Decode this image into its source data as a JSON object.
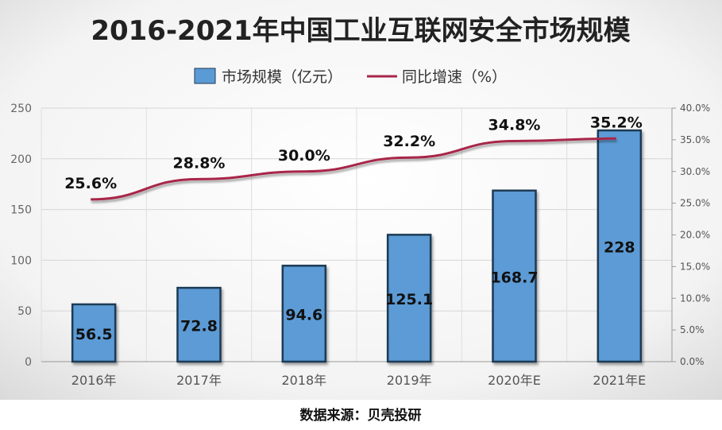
{
  "chart_data": {
    "type": "bar",
    "title": "2016-2021年中国工业互联网安全市场规模",
    "categories": [
      "2016年",
      "2017年",
      "2018年",
      "2019年",
      "2020年E",
      "2021年E"
    ],
    "series": [
      {
        "name": "市场规模（亿元）",
        "type": "bar",
        "axis": "left",
        "values": [
          56.5,
          72.8,
          94.6,
          125.1,
          168.7,
          228
        ],
        "labels": [
          "56.5",
          "72.8",
          "94.6",
          "125.1",
          "168.7",
          "228"
        ]
      },
      {
        "name": "同比增速（%）",
        "type": "line",
        "axis": "right",
        "values": [
          25.6,
          28.8,
          30.0,
          32.2,
          34.8,
          35.2
        ],
        "labels": [
          "25.6%",
          "28.8%",
          "30.0%",
          "32.2%",
          "34.8%",
          "35.2%"
        ]
      }
    ],
    "y_left": {
      "min": 0,
      "max": 250,
      "ticks": [
        "0",
        "50",
        "100",
        "150",
        "200",
        "250"
      ]
    },
    "y_right": {
      "min": 0,
      "max": 40,
      "ticks": [
        "0.0%",
        "5.0%",
        "10.0%",
        "15.0%",
        "20.0%",
        "25.0%",
        "30.0%",
        "35.0%",
        "40.0%"
      ]
    },
    "grid": true,
    "legend_position": "top-center",
    "source": "数据来源：贝壳投研",
    "colors": {
      "bar": "#5B9BD5",
      "bar_border": "#1F3A55",
      "line": "#A8264A"
    }
  }
}
